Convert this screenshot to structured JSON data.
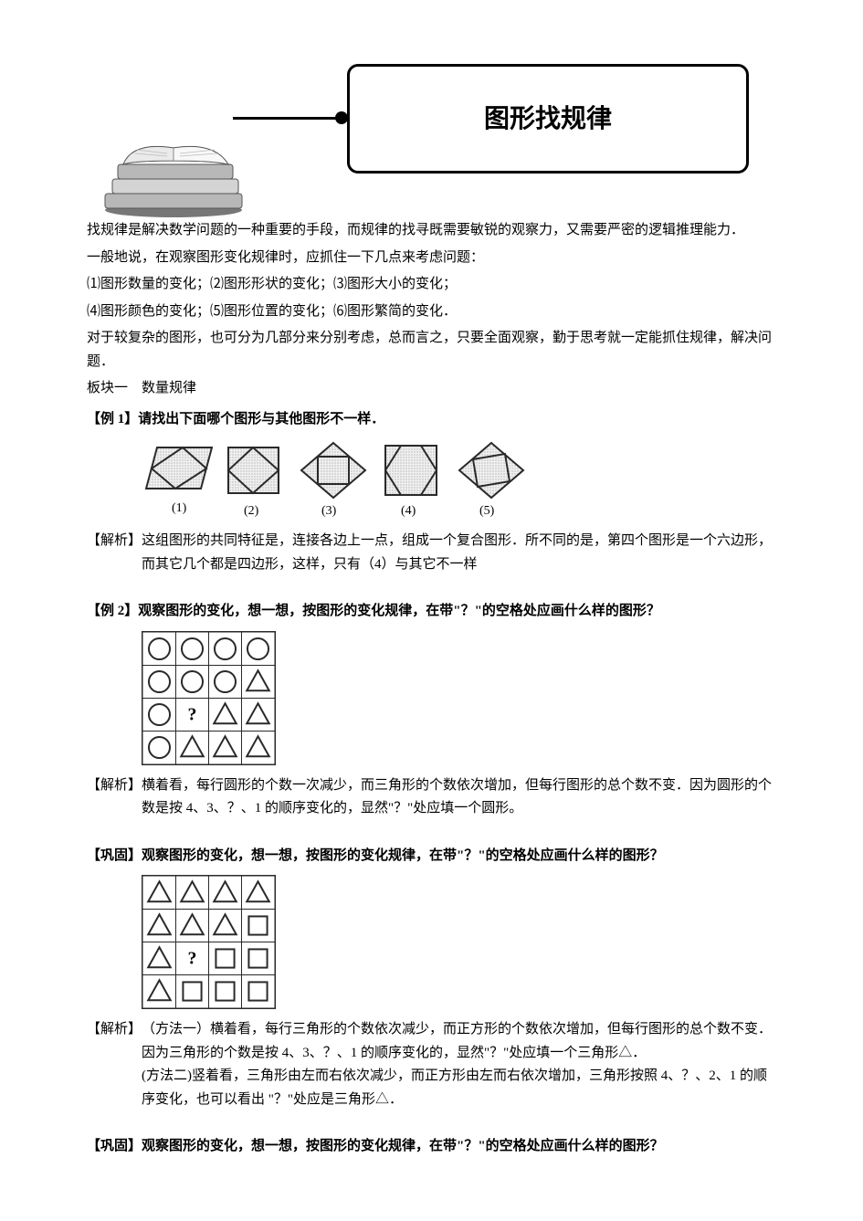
{
  "title": "图形找规律",
  "intro_lines": [
    "找规律是解决数学问题的一种重要的手段，而规律的找寻既需要敏锐的观察力，又需要严密的逻辑推理能力．",
    "一般地说，在观察图形变化规律时，应抓住一下几点来考虑问题：",
    "⑴图形数量的变化；⑵图形形状的变化；⑶图形大小的变化；",
    "⑷图形颜色的变化；⑸图形位置的变化；⑹图形繁简的变化．",
    "对于较复杂的图形，也可分为几部分来分别考虑，总而言之，只要全面观察，勤于思考就一定能抓住规律，解决问题．"
  ],
  "section1": "板块一　数量规律",
  "ex1": {
    "tag": "【例 1】",
    "q": "请找出下面哪个图形与其他图形不一样．",
    "labels": [
      "(1)",
      "(2)",
      "(3)",
      "(4)",
      "(5)"
    ],
    "ans_tag": "【解析】",
    "ans": "这组图形的共同特征是，连接各边上一点，组成一个复合图形．所不同的是，第四个图形是一个六边形，而其它几个都是四边形，这样，只有（4）与其它不一样"
  },
  "ex2": {
    "tag": "【例 2】",
    "q": "观察图形的变化，想一想，按图形的变化规律，在带\"？\"的空格处应画什么样的图形？",
    "grid": [
      [
        "○",
        "○",
        "○",
        "○"
      ],
      [
        "○",
        "○",
        "○",
        "△"
      ],
      [
        "○",
        "?",
        "△",
        "△"
      ],
      [
        "○",
        "△",
        "△",
        "△"
      ]
    ],
    "ans_tag": "【解析】",
    "ans": "横着看，每行圆形的个数一次减少，而三角形的个数依次增加，但每行图形的总个数不变．因为圆形的个数是按 4、3、？、1 的顺序变化的，显然\"？\"处应填一个圆形。"
  },
  "gong1": {
    "tag": "【巩固】",
    "q": "观察图形的变化，想一想，按图形的变化规律，在带\"？\"的空格处应画什么样的图形？",
    "grid": [
      [
        "△",
        "△",
        "△",
        "△"
      ],
      [
        "△",
        "△",
        "△",
        "□"
      ],
      [
        "△",
        "?",
        "□",
        "□"
      ],
      [
        "△",
        "□",
        "□",
        "□"
      ]
    ],
    "ans_tag": "【解析】",
    "ans1": "（方法一）横着看，每行三角形的个数依次减少，而正方形的个数依次增加，但每行图形的总个数不变．因为三角形的个数是按 4、3、？、1 的顺序变化的，显然\"？\"处应填一个三角形△．",
    "ans2": "(方法二)竖着看，三角形由左而右依次减少，而正方形由左而右依次增加，三角形按照 4、？、2、1 的顺序变化，也可以看出 \"？\"处应是三角形△．"
  },
  "gong2": {
    "tag": "【巩固】",
    "q": "观察图形的变化，想一想，按图形的变化规律，在带\"？\"的空格处应画什么样的图形？"
  },
  "colors": {
    "text": "#000000",
    "bg": "#ffffff",
    "book_gray": "#b8b8b8",
    "book_dark": "#888888",
    "grain": "#909090",
    "stroke": "#2a2a2a"
  },
  "fig1": {
    "shape_size": 62,
    "gap": 18,
    "stroke": "#2a2a2a",
    "stroke_width": 2
  },
  "grid_style": {
    "cell": 36,
    "border": "#2a2a2a",
    "border_width": 1.5,
    "shape_stroke": "#2a2a2a",
    "shape_stroke_width": 2
  }
}
